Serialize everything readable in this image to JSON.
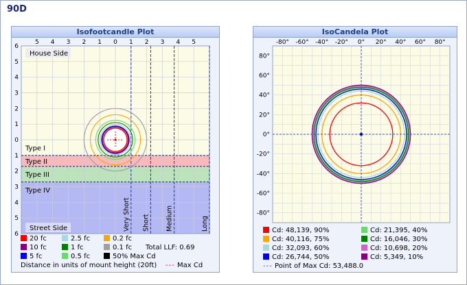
{
  "page_title": "90D",
  "chart_data": [
    {
      "type": "contour",
      "title": "Isofootcandle Plot",
      "xlim": [
        -6,
        6
      ],
      "ylim": [
        -6,
        6
      ],
      "x_ticks": [
        "5",
        "4",
        "3",
        "2",
        "1",
        "0",
        "1",
        "2",
        "3",
        "4",
        "5"
      ],
      "y_ticks": [
        "6",
        "5",
        "4",
        "3",
        "2",
        "1",
        "0",
        "1",
        "2",
        "3",
        "4",
        "5",
        "6"
      ],
      "zone_labels": [
        "Type I",
        "Type II",
        "Type III",
        "Type IV"
      ],
      "zone_bounds": [
        1,
        1.7,
        2.7
      ],
      "classification_lines": [
        {
          "label": "Very Short",
          "x": 1
        },
        {
          "label": "Short",
          "x": 2.25
        },
        {
          "label": "Medium",
          "x": 3.75
        },
        {
          "label": "Long",
          "x": 6
        }
      ],
      "house_side_label": "House Side",
      "street_side_label": "Street Side",
      "series": [
        {
          "name": "20 fc",
          "color": "#ff0000",
          "radius": 0.75
        },
        {
          "name": "10 fc",
          "color": "#800080",
          "radius": 0.83
        },
        {
          "name": "5 fc",
          "color": "#0000ff",
          "radius": 0.88
        },
        {
          "name": "2.5 fc",
          "color": "#a8d8e0",
          "radius": 0.97
        },
        {
          "name": "1 fc",
          "color": "#008000",
          "radius": 1.1
        },
        {
          "name": "0.5 fc",
          "color": "#66dd66",
          "radius": 1.25
        },
        {
          "name": "0.2 fc",
          "color": "#ffa500",
          "radius": 1.6
        },
        {
          "name": "0.1 fc",
          "color": "#a0a0a0",
          "radius": 2.0
        },
        {
          "name": "50% Max Cd",
          "color": "#000000",
          "radius": 0.45
        }
      ],
      "total_llf": "Total LLF: 0.69",
      "footnote": "Distance in units of mount height (20ft)",
      "max_cd_label": "Max Cd"
    },
    {
      "type": "polar",
      "title": "IsoCandela Plot",
      "x_ticks": [
        "-80°",
        "-60°",
        "-40°",
        "-20°",
        "0°",
        "20°",
        "40°",
        "60°",
        "80°"
      ],
      "y_ticks": [
        "80°",
        "60°",
        "40°",
        "20°",
        "0°",
        "-20°",
        "-40°",
        "-60°",
        "-80°"
      ],
      "xlim": [
        -90,
        90
      ],
      "ylim": [
        -90,
        90
      ],
      "series": [
        {
          "name": "Cd: 48,139, 90%",
          "color": "#ff0000",
          "radius_deg": 32
        },
        {
          "name": "Cd: 40,116, 75%",
          "color": "#ffa500",
          "radius_deg": 40
        },
        {
          "name": "Cd: 32,093, 60%",
          "color": "#a8d8e0",
          "radius_deg": 44
        },
        {
          "name": "Cd: 26,744, 50%",
          "color": "#0000ff",
          "radius_deg": 46
        },
        {
          "name": "Cd: 21,395, 40%",
          "color": "#66dd66",
          "radius_deg": 47
        },
        {
          "name": "Cd: 16,046, 30%",
          "color": "#008000",
          "radius_deg": 48
        },
        {
          "name": "Cd: 10,698, 20%",
          "color": "#cc66cc",
          "radius_deg": 49
        },
        {
          "name": "Cd: 5,349, 10%",
          "color": "#800080",
          "radius_deg": 50
        }
      ],
      "max_point_label": "Point of Max Cd: 53,488.0"
    }
  ]
}
